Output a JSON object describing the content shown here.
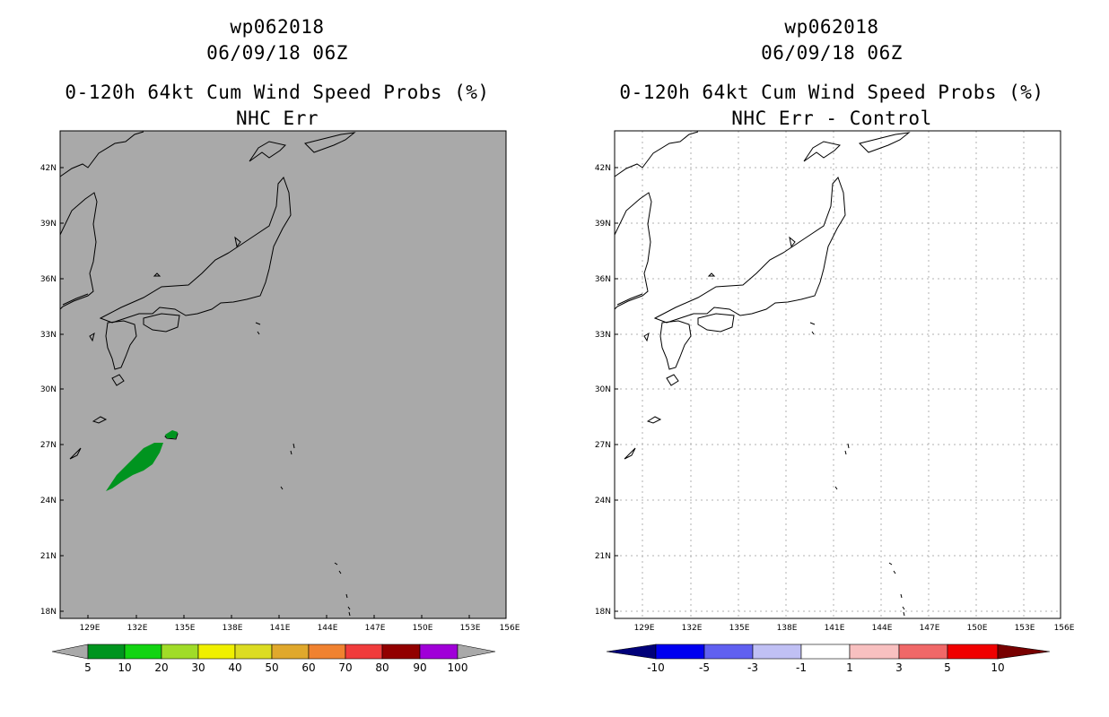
{
  "panels": [
    {
      "id": "left",
      "storm_id": "wp062018",
      "datetime": "06/09/18 06Z",
      "product": "0-120h 64kt Cum Wind Speed Probs (%)",
      "subtitle": "NHC Err",
      "background": "#a9a9a9",
      "colorbar_labels": [
        "5",
        "10",
        "20",
        "30",
        "40",
        "50",
        "60",
        "70",
        "80",
        "90",
        "100"
      ],
      "colorbar_colors": [
        "#00941f",
        "#12d412",
        "#a0dc28",
        "#f0f000",
        "#dcdc22",
        "#e0a82c",
        "#f08230",
        "#f03c3c",
        "#920000",
        "#a000d8",
        "#a9a9a9"
      ]
    },
    {
      "id": "right",
      "storm_id": "wp062018",
      "datetime": "06/09/18 06Z",
      "product": "0-120h 64kt Cum Wind Speed Probs (%)",
      "subtitle": "NHC Err - Control",
      "background": "#ffffff",
      "colorbar_labels": [
        "-10",
        "-5",
        "-3",
        "-1",
        "1",
        "3",
        "5",
        "10"
      ],
      "colorbar_colors": [
        "#00007a",
        "#0000f0",
        "#6060f0",
        "#c0c0f4",
        "#ffffff",
        "#f8c0c0",
        "#f06868",
        "#f00000",
        "#780000"
      ]
    }
  ],
  "axes": {
    "lat_labels": [
      "42N",
      "39N",
      "36N",
      "33N",
      "30N",
      "27N",
      "24N",
      "21N",
      "18N"
    ],
    "lon_labels": [
      "129E",
      "132E",
      "135E",
      "138E",
      "141E",
      "144E",
      "147E",
      "150E",
      "153E",
      "156E"
    ]
  },
  "probability_area": {
    "color": "#00941f",
    "range_percent": "5-10",
    "region": "south of Kyushu near 25-27N, 129-134E"
  }
}
